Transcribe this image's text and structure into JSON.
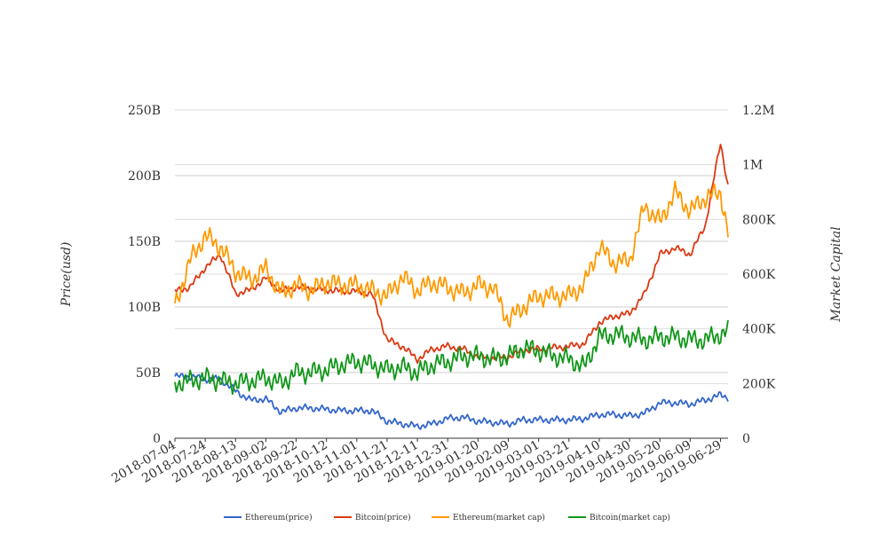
{
  "chart_data": {
    "type": "line",
    "title": "",
    "ylabel_left": "Price(usd)",
    "ylabel_right": "Market Capital",
    "left_axis": {
      "range": [
        0,
        250000000000
      ],
      "ticks": [
        0,
        50000000000,
        100000000000,
        150000000000,
        200000000000,
        250000000000
      ],
      "tick_labels": [
        "0",
        "50B",
        "100B",
        "150B",
        "200B",
        "250B"
      ]
    },
    "right_axis": {
      "range": [
        0,
        1200000
      ],
      "ticks": [
        0,
        200000,
        400000,
        600000,
        800000,
        1000000,
        1200000
      ],
      "tick_labels": [
        "0",
        "200K",
        "400K",
        "600K",
        "800K",
        "1M",
        "1.2M"
      ]
    },
    "x_range": [
      "2018-07-04",
      "2019-07-04"
    ],
    "x_tick_labels": [
      "2018-07-04",
      "2018-07-24",
      "2018-08-13",
      "2018-09-02",
      "2018-09-22",
      "2018-10-12",
      "2018-11-01",
      "2018-11-21",
      "2018-12-11",
      "2018-12-31",
      "2019-01-20",
      "2019-02-09",
      "2019-03-01",
      "2019-03-21",
      "2019-04-10",
      "2019-04-30",
      "2019-05-20",
      "2019-06-09",
      "2019-06-29"
    ],
    "grid": true,
    "legend_position": "bottom",
    "series": [
      {
        "name": "Ethereum(price)",
        "axis": "left",
        "color": "#3366cc",
        "x": [
          "2018-07-04",
          "2018-07-14",
          "2018-07-24",
          "2018-08-03",
          "2018-08-13",
          "2018-08-23",
          "2018-09-02",
          "2018-09-12",
          "2018-09-22",
          "2018-10-02",
          "2018-10-12",
          "2018-10-22",
          "2018-11-01",
          "2018-11-11",
          "2018-11-21",
          "2018-12-01",
          "2018-12-11",
          "2018-12-21",
          "2018-12-31",
          "2019-01-10",
          "2019-01-20",
          "2019-01-30",
          "2019-02-09",
          "2019-02-19",
          "2019-03-01",
          "2019-03-11",
          "2019-03-21",
          "2019-03-31",
          "2019-04-10",
          "2019-04-20",
          "2019-04-30",
          "2019-05-10",
          "2019-05-20",
          "2019-05-30",
          "2019-06-09",
          "2019-06-19",
          "2019-06-29",
          "2019-07-04"
        ],
        "values": [
          47000000000,
          47000000000,
          45000000000,
          45000000000,
          36000000000,
          29000000000,
          30000000000,
          20000000000,
          23000000000,
          23000000000,
          22000000000,
          21000000000,
          21000000000,
          21000000000,
          13000000000,
          11000000000,
          9000000000,
          11000000000,
          15000000000,
          16000000000,
          13000000000,
          12000000000,
          11000000000,
          14000000000,
          14000000000,
          14000000000,
          14000000000,
          15000000000,
          18000000000,
          18000000000,
          17000000000,
          19000000000,
          27000000000,
          27000000000,
          26000000000,
          29000000000,
          33000000000,
          31000000000
        ]
      },
      {
        "name": "Bitcoin(price)",
        "axis": "left",
        "color": "#dc3912",
        "x": [
          "2018-07-04",
          "2018-07-14",
          "2018-07-24",
          "2018-08-03",
          "2018-08-13",
          "2018-08-23",
          "2018-09-02",
          "2018-09-12",
          "2018-09-22",
          "2018-10-02",
          "2018-10-12",
          "2018-10-22",
          "2018-11-01",
          "2018-11-11",
          "2018-11-21",
          "2018-12-01",
          "2018-12-11",
          "2018-12-21",
          "2018-12-31",
          "2019-01-10",
          "2019-01-20",
          "2019-01-30",
          "2019-02-09",
          "2019-02-19",
          "2019-03-01",
          "2019-03-11",
          "2019-03-21",
          "2019-03-31",
          "2019-04-10",
          "2019-04-20",
          "2019-04-30",
          "2019-05-10",
          "2019-05-20",
          "2019-05-30",
          "2019-06-09",
          "2019-06-19",
          "2019-06-29",
          "2019-07-04"
        ],
        "values": [
          112000000000,
          115000000000,
          130000000000,
          140000000000,
          110000000000,
          113000000000,
          122000000000,
          112000000000,
          115000000000,
          114000000000,
          113000000000,
          112000000000,
          112000000000,
          110000000000,
          75000000000,
          70000000000,
          60000000000,
          68000000000,
          70000000000,
          68000000000,
          62000000000,
          61000000000,
          62000000000,
          67000000000,
          68000000000,
          69000000000,
          70000000000,
          72000000000,
          88000000000,
          93000000000,
          95000000000,
          110000000000,
          140000000000,
          145000000000,
          140000000000,
          162000000000,
          225000000000,
          192000000000
        ]
      },
      {
        "name": "Ethereum(market cap)",
        "axis": "right",
        "color": "#ff9900",
        "x": [
          "2018-07-04",
          "2018-07-14",
          "2018-07-24",
          "2018-08-03",
          "2018-08-13",
          "2018-08-23",
          "2018-09-02",
          "2018-09-12",
          "2018-09-22",
          "2018-10-02",
          "2018-10-12",
          "2018-10-22",
          "2018-11-01",
          "2018-11-11",
          "2018-11-21",
          "2018-12-01",
          "2018-12-11",
          "2018-12-21",
          "2018-12-31",
          "2019-01-10",
          "2019-01-20",
          "2019-01-30",
          "2019-02-09",
          "2019-02-19",
          "2019-03-01",
          "2019-03-11",
          "2019-03-21",
          "2019-03-31",
          "2019-04-10",
          "2019-04-20",
          "2019-04-30",
          "2019-05-10",
          "2019-05-20",
          "2019-05-30",
          "2019-06-09",
          "2019-06-19",
          "2019-06-29",
          "2019-07-04"
        ],
        "values": [
          480000,
          650000,
          740000,
          700000,
          610000,
          580000,
          620000,
          530000,
          560000,
          540000,
          570000,
          560000,
          560000,
          540000,
          520000,
          590000,
          540000,
          570000,
          550000,
          530000,
          560000,
          550000,
          430000,
          480000,
          520000,
          520000,
          520000,
          560000,
          700000,
          640000,
          650000,
          850000,
          790000,
          900000,
          830000,
          880000,
          900000,
          750000
        ]
      },
      {
        "name": "Bitcoin(market cap)",
        "axis": "right",
        "color": "#109618",
        "x": [
          "2018-07-04",
          "2018-07-14",
          "2018-07-24",
          "2018-08-03",
          "2018-08-13",
          "2018-08-23",
          "2018-09-02",
          "2018-09-12",
          "2018-09-22",
          "2018-10-02",
          "2018-10-12",
          "2018-10-22",
          "2018-11-01",
          "2018-11-11",
          "2018-11-21",
          "2018-12-01",
          "2018-12-11",
          "2018-12-21",
          "2018-12-31",
          "2019-01-10",
          "2019-01-20",
          "2019-01-30",
          "2019-02-09",
          "2019-02-19",
          "2019-03-01",
          "2019-03-11",
          "2019-03-21",
          "2019-03-31",
          "2019-04-10",
          "2019-04-20",
          "2019-04-30",
          "2019-05-10",
          "2019-05-20",
          "2019-05-30",
          "2019-06-09",
          "2019-06-19",
          "2019-06-29",
          "2019-07-04"
        ],
        "values": [
          200000,
          210000,
          220000,
          210000,
          200000,
          210000,
          220000,
          200000,
          240000,
          240000,
          250000,
          270000,
          280000,
          270000,
          250000,
          260000,
          240000,
          270000,
          280000,
          300000,
          300000,
          290000,
          300000,
          330000,
          320000,
          300000,
          290000,
          260000,
          370000,
          380000,
          370000,
          360000,
          370000,
          370000,
          360000,
          360000,
          380000,
          390000
        ]
      }
    ]
  }
}
